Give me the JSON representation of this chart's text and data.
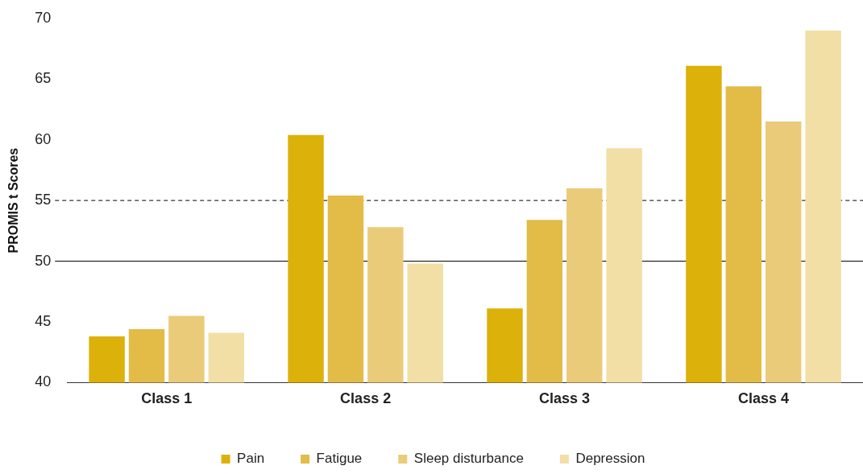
{
  "chart_data": {
    "type": "bar",
    "ylabel": "PROMIS t Scores",
    "categories": [
      "Class 1",
      "Class 2",
      "Class 3",
      "Class 4"
    ],
    "series": [
      {
        "name": "Pain",
        "color": "#dcb10a",
        "values": [
          43.8,
          60.4,
          46.1,
          66.1
        ]
      },
      {
        "name": "Fatigue",
        "color": "#e2bc47",
        "values": [
          44.4,
          55.4,
          53.4,
          64.4
        ]
      },
      {
        "name": "Sleep disturbance",
        "color": "#eacb79",
        "values": [
          45.5,
          52.8,
          56.0,
          61.5
        ]
      },
      {
        "name": "Depression",
        "color": "#f1dfa5",
        "values": [
          44.1,
          49.8,
          59.3,
          69.0
        ]
      }
    ],
    "ylim": [
      40,
      70
    ],
    "yticks": [
      40,
      45,
      50,
      55,
      60,
      65,
      70
    ],
    "grid": false,
    "legend": "bottom",
    "ref_lines": [
      {
        "axis": "y",
        "value": 55,
        "color": "#000000",
        "line_style": "dashed"
      },
      {
        "axis": "y",
        "value": 50,
        "color": "#000000",
        "line_style": "solid"
      }
    ]
  }
}
